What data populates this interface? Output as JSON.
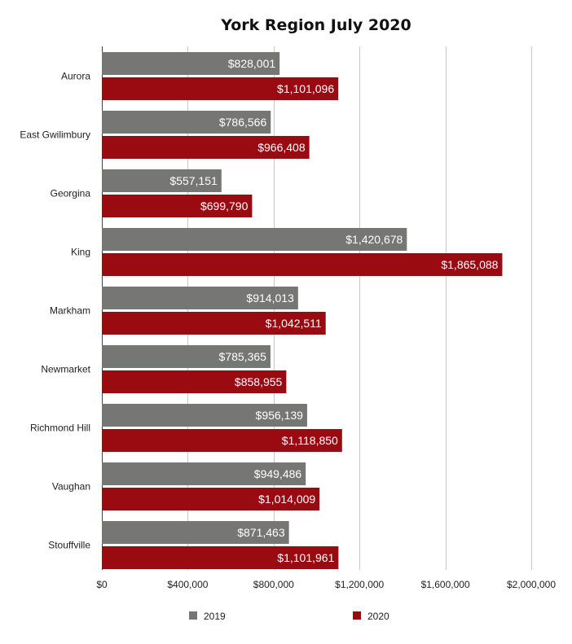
{
  "chart_data": {
    "type": "bar",
    "orientation": "horizontal",
    "title": "York Region July 2020",
    "categories": [
      "Aurora",
      "East Gwilimbury",
      "Georgina",
      "King",
      "Markham",
      "Newmarket",
      "Richmond Hill",
      "Vaughan",
      "Stouffville"
    ],
    "series": [
      {
        "name": "2019",
        "color": "#767775",
        "values": [
          828001,
          786566,
          557151,
          1420678,
          914013,
          785365,
          956139,
          949486,
          871463
        ],
        "labels": [
          "$828,001",
          "$786,566",
          "$557,151",
          "$1,420,678",
          "$914,013",
          "$785,365",
          "$956,139",
          "$949,486",
          "$871,463"
        ]
      },
      {
        "name": "2020",
        "color": "#990b11",
        "values": [
          1101096,
          966408,
          699790,
          1865088,
          1042511,
          858955,
          1118850,
          1014009,
          1101961
        ],
        "labels": [
          "$1,101,096",
          "$966,408",
          "$699,790",
          "$1,865,088",
          "$1,042,511",
          "$858,955",
          "$1,118,850",
          "$1,014,009",
          "$1,101,961"
        ]
      }
    ],
    "xlim": [
      0,
      2000000
    ],
    "x_ticks": [
      0,
      400000,
      800000,
      1200000,
      1600000,
      2000000
    ],
    "x_tick_labels": [
      "$0",
      "$400,000",
      "$800,000",
      "$1,200,000",
      "$1,600,000",
      "$2,000,000"
    ],
    "grid": true,
    "legend_position": "bottom"
  }
}
